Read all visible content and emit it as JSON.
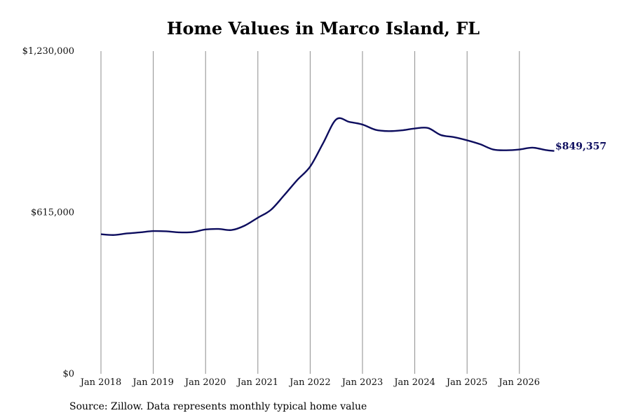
{
  "chart_data": {
    "type": "line",
    "title": "Home Values in Marco Island, FL",
    "xlabel": "",
    "ylabel": "",
    "ylim": [
      0,
      1230000
    ],
    "y_ticks": [
      0,
      615000,
      1230000
    ],
    "y_tick_labels": [
      "$0",
      "$615,000",
      "$1,230,000"
    ],
    "x_ticks": [
      "2018-01",
      "2019-01",
      "2020-01",
      "2021-01",
      "2022-01",
      "2023-01",
      "2024-01",
      "2025-01",
      "2026-01"
    ],
    "x_tick_labels": [
      "Jan 2018",
      "Jan 2019",
      "Jan 2020",
      "Jan 2021",
      "Jan 2022",
      "Jan 2023",
      "Jan 2024",
      "Jan 2025",
      "Jan 2026"
    ],
    "grid": "vertical",
    "line_color": "#0d0d5e",
    "series": [
      {
        "x": [
          "2018-01",
          "2018-04",
          "2018-07",
          "2018-10",
          "2019-01",
          "2019-04",
          "2019-07",
          "2019-10",
          "2020-01",
          "2020-04",
          "2020-07",
          "2020-10",
          "2021-01",
          "2021-04",
          "2021-07",
          "2021-10",
          "2022-01",
          "2022-04",
          "2022-07",
          "2022-10",
          "2023-01",
          "2023-04",
          "2023-07",
          "2023-10",
          "2024-01",
          "2024-04",
          "2024-07",
          "2024-10",
          "2025-01",
          "2025-04",
          "2025-07",
          "2025-10",
          "2026-01",
          "2026-04",
          "2026-07",
          "2026-09"
        ],
        "values": [
          532000,
          529000,
          535000,
          539000,
          544000,
          543000,
          539000,
          540000,
          550000,
          552000,
          548000,
          565000,
          595000,
          625000,
          680000,
          738000,
          790000,
          880000,
          970000,
          960000,
          950000,
          930000,
          925000,
          928000,
          935000,
          937000,
          910000,
          902000,
          890000,
          875000,
          855000,
          852000,
          855000,
          862000,
          853000,
          849357
        ]
      }
    ],
    "end_label": "$849,357",
    "source_note": "Source: Zillow. Data represents monthly typical home value"
  }
}
